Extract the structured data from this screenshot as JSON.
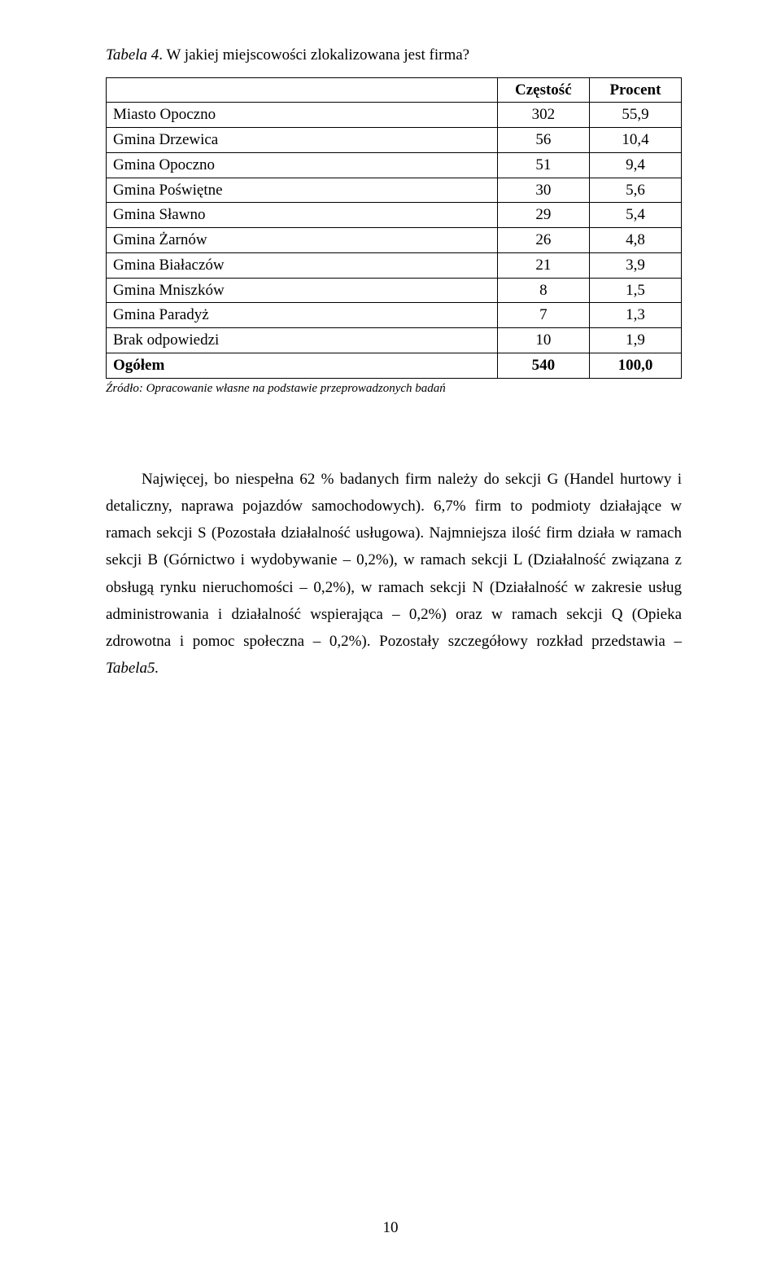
{
  "table": {
    "caption_prefix": "Tabela 4",
    "caption_rest": ". W jakiej miejscowości zlokalizowana jest firma?",
    "columns": [
      "",
      "Częstość",
      "Procent"
    ],
    "col_widths": [
      "68%",
      "16%",
      "16%"
    ],
    "rows": [
      {
        "label": "Miasto Opoczno",
        "freq": "302",
        "pct": "55,9"
      },
      {
        "label": "Gmina Drzewica",
        "freq": "56",
        "pct": "10,4"
      },
      {
        "label": "Gmina Opoczno",
        "freq": "51",
        "pct": "9,4"
      },
      {
        "label": "Gmina Poświętne",
        "freq": "30",
        "pct": "5,6"
      },
      {
        "label": "Gmina Sławno",
        "freq": "29",
        "pct": "5,4"
      },
      {
        "label": "Gmina Żarnów",
        "freq": "26",
        "pct": "4,8"
      },
      {
        "label": "Gmina Białaczów",
        "freq": "21",
        "pct": "3,9"
      },
      {
        "label": "Gmina Mniszków",
        "freq": "8",
        "pct": "1,5"
      },
      {
        "label": "Gmina Paradyż",
        "freq": "7",
        "pct": "1,3"
      },
      {
        "label": "Brak odpowiedzi",
        "freq": "10",
        "pct": "1,9"
      }
    ],
    "total": {
      "label": "Ogółem",
      "freq": "540",
      "pct": "100,0"
    },
    "source": "Źródło: Opracowanie własne na podstawie przeprowadzonych badań",
    "border_color": "#000000"
  },
  "paragraph": {
    "text_before": "Najwięcej, bo niespełna 62 % badanych firm należy do sekcji G (Handel hurtowy i detaliczny, naprawa pojazdów samochodowych). 6,7% firm to podmioty działające w ramach sekcji S (Pozostała działalność usługowa). Najmniejsza ilość firm działa w ramach sekcji B (Górnictwo i wydobywanie – 0,2%), w ramach sekcji L (Działalność związana z obsługą rynku nieruchomości – 0,2%), w ramach sekcji N (Działalność w zakresie usług administrowania i działalność wspierająca – 0,2%) oraz w ramach sekcji Q (Opieka zdrowotna i pomoc społeczna – 0,2%).  Pozostały szczegółowy rozkład przedstawia – ",
    "tabela_inline": "Tabela5.",
    "text_after": ""
  },
  "page_number": "10"
}
